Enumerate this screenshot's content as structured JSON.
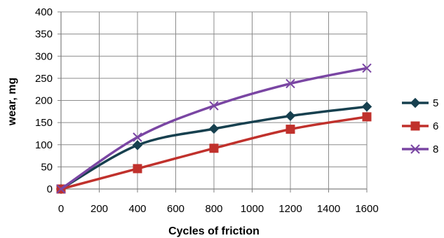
{
  "chart_data": {
    "type": "line",
    "title": "",
    "xlabel": "Cycles of friction",
    "ylabel": "wear, mg",
    "xlim": [
      0,
      1600
    ],
    "ylim": [
      0,
      400
    ],
    "x_ticks": [
      0,
      200,
      400,
      600,
      800,
      1000,
      1200,
      1400,
      1600
    ],
    "y_ticks": [
      0,
      50,
      100,
      150,
      200,
      250,
      300,
      350,
      400
    ],
    "grid": true,
    "smooth": true,
    "legend_position": "right",
    "series": [
      {
        "name": "5",
        "color": "#17404f",
        "marker": "diamond",
        "x": [
          0,
          400,
          800,
          1200,
          1600
        ],
        "y": [
          0,
          99,
          136,
          165,
          186
        ]
      },
      {
        "name": "6",
        "color": "#c0312c",
        "marker": "square",
        "x": [
          0,
          400,
          800,
          1200,
          1600
        ],
        "y": [
          0,
          46,
          92,
          135,
          163
        ]
      },
      {
        "name": "8",
        "color": "#7a46a3",
        "marker": "x",
        "x": [
          0,
          400,
          800,
          1200,
          1600
        ],
        "y": [
          0,
          117,
          188,
          238,
          273
        ]
      }
    ]
  }
}
